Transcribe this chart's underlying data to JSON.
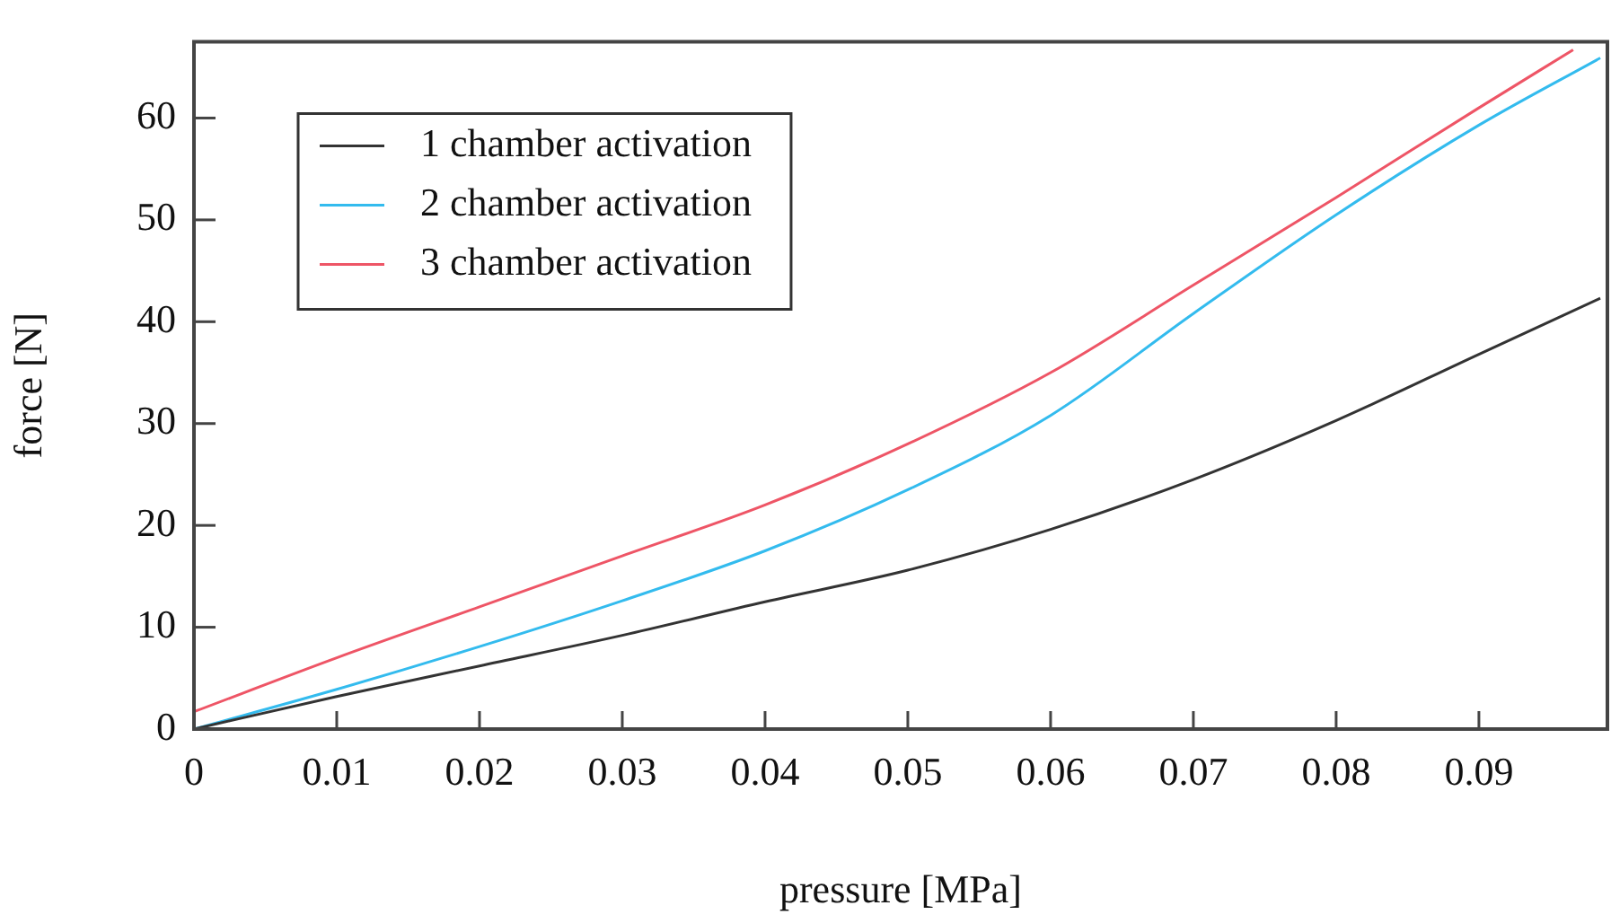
{
  "chart_data": {
    "type": "line",
    "xlabel": "pressure [MPa]",
    "ylabel": "force [N]",
    "xlim": [
      0,
      0.099
    ],
    "ylim": [
      0,
      67.5
    ],
    "xticks": [
      0,
      0.01,
      0.02,
      0.03,
      0.04,
      0.05,
      0.06,
      0.07,
      0.08,
      0.09
    ],
    "yticks": [
      0,
      10,
      20,
      30,
      40,
      50,
      60
    ],
    "grid": false,
    "legend": "top left",
    "marker": "none",
    "line_style": "solid",
    "series": [
      {
        "name": "1 chamber activation",
        "color": "#333333",
        "x": [
          0,
          0.01,
          0.02,
          0.03,
          0.04,
          0.05,
          0.06,
          0.07,
          0.08,
          0.09,
          0.0985
        ],
        "values": [
          0,
          3.2,
          6.2,
          9.2,
          12.5,
          15.6,
          19.6,
          24.5,
          30.3,
          36.8,
          42.3
        ]
      },
      {
        "name": "2 chamber activation",
        "color": "#33bbee",
        "x": [
          0,
          0.01,
          0.02,
          0.03,
          0.04,
          0.05,
          0.06,
          0.07,
          0.08,
          0.09,
          0.0985
        ],
        "values": [
          0,
          3.9,
          8.1,
          12.6,
          17.5,
          23.5,
          30.8,
          40.8,
          50.5,
          59.3,
          65.9
        ]
      },
      {
        "name": "3 chamber activation",
        "color": "#ee5566",
        "x": [
          0,
          0.01,
          0.02,
          0.03,
          0.04,
          0.05,
          0.06,
          0.07,
          0.08,
          0.09,
          0.0966
        ],
        "values": [
          1.7,
          7,
          12,
          17,
          22,
          28,
          35,
          43.6,
          52.2,
          61,
          66.7
        ]
      }
    ]
  }
}
